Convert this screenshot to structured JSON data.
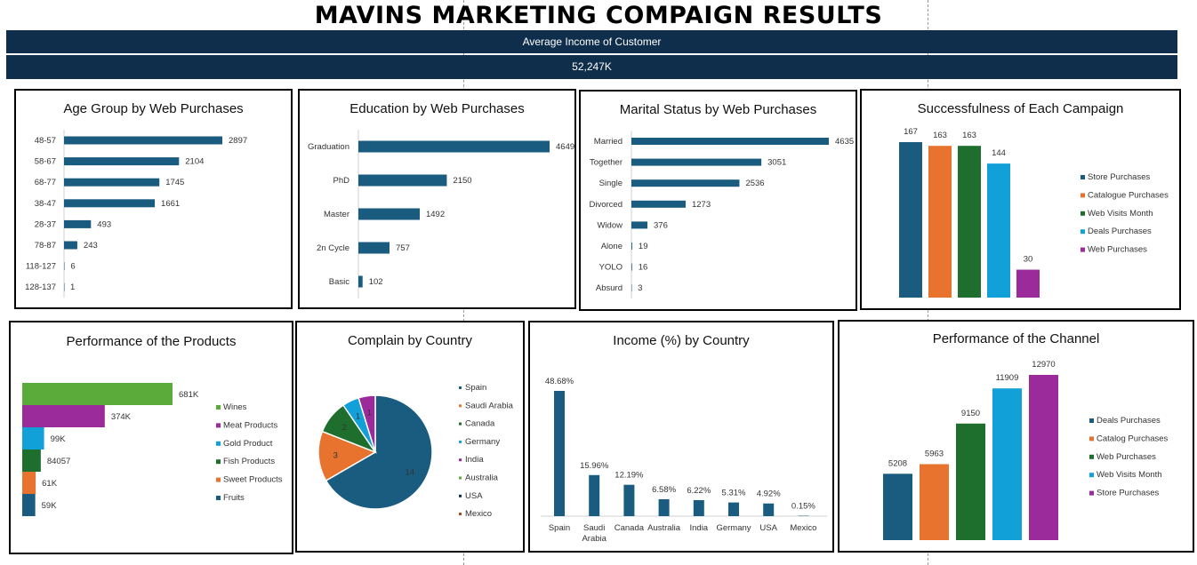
{
  "header": {
    "title": "MAVINS MARKETING COMPAIGN RESULTS",
    "band_label": "Average Income of Customer",
    "band_value": "52,247K"
  },
  "colors": {
    "navy": "#1a5b80",
    "orange": "#e8732f",
    "green": "#1e6e2d",
    "cyan": "#12a0d8",
    "purple": "#9b2a9b",
    "lime": "#5bab3a",
    "dark": "#0f2e4c"
  },
  "chart_data": [
    {
      "id": "age",
      "type": "bar",
      "orientation": "horizontal",
      "title": "Age Group by Web Purchases",
      "categories": [
        "48-57",
        "58-67",
        "68-77",
        "38-47",
        "28-37",
        "78-87",
        "118-127",
        "128-137"
      ],
      "values": [
        2897,
        2104,
        1745,
        1661,
        493,
        243,
        6,
        1
      ],
      "labels": [
        "2897",
        "2104",
        "1745",
        "1661",
        "493",
        "243",
        "6",
        "1"
      ],
      "xlim": [
        0,
        2897
      ]
    },
    {
      "id": "edu",
      "type": "bar",
      "orientation": "horizontal",
      "title": "Education by Web Purchases",
      "categories": [
        "Graduation",
        "PhD",
        "Master",
        "2n Cycle",
        "Basic"
      ],
      "values": [
        4649,
        2150,
        1492,
        757,
        102
      ],
      "labels": [
        "4649",
        "2150",
        "1492",
        "757",
        "102"
      ],
      "xlim": [
        0,
        4649
      ]
    },
    {
      "id": "marital",
      "type": "bar",
      "orientation": "horizontal",
      "title": "Marital Status by Web Purchases",
      "categories": [
        "Married",
        "Together",
        "Single",
        "Divorced",
        "Widow",
        "Alone",
        "YOLO",
        "Absurd"
      ],
      "values": [
        4635,
        3051,
        2536,
        1273,
        376,
        19,
        16,
        3
      ],
      "labels": [
        "4635",
        "3051",
        "2536",
        "1273",
        "376",
        "19",
        "16",
        "3"
      ],
      "xlim": [
        0,
        4635
      ]
    },
    {
      "id": "campaign",
      "type": "bar",
      "title": "Successfulness of Each Campaign",
      "series": [
        {
          "name": "Store Purchases",
          "value": 167,
          "label": "167",
          "color": "#1a5b80"
        },
        {
          "name": "Catalogue Purchases",
          "value": 163,
          "label": "163",
          "color": "#e8732f"
        },
        {
          "name": "Web Visits Month",
          "value": 163,
          "label": "163",
          "color": "#1e6e2d"
        },
        {
          "name": "Deals Purchases",
          "value": 144,
          "label": "144",
          "color": "#12a0d8"
        },
        {
          "name": "Web Purchases",
          "value": 30,
          "label": "30",
          "color": "#9b2a9b"
        }
      ],
      "ylim": [
        0,
        167
      ],
      "legend": "right"
    },
    {
      "id": "products",
      "type": "bar",
      "orientation": "horizontal",
      "title": "Performance of the Products",
      "series": [
        {
          "name": "Wines",
          "value": 681000,
          "label": "681K",
          "color": "#5bab3a"
        },
        {
          "name": "Meat Products",
          "value": 374000,
          "label": "374K",
          "color": "#9b2a9b"
        },
        {
          "name": "Gold Product",
          "value": 99000,
          "label": "99K",
          "color": "#12a0d8"
        },
        {
          "name": "Fish Products",
          "value": 84057,
          "label": "84057",
          "color": "#1e6e2d"
        },
        {
          "name": "Sweet Products",
          "value": 61000,
          "label": "61K",
          "color": "#e8732f"
        },
        {
          "name": "Fruits",
          "value": 59000,
          "label": "59K",
          "color": "#1a5b80"
        }
      ],
      "xlim": [
        0,
        681000
      ],
      "legend": "right"
    },
    {
      "id": "complain",
      "type": "pie",
      "title": "Complain by Country",
      "series": [
        {
          "name": "Spain",
          "value": 14,
          "color": "#1a5b80"
        },
        {
          "name": "Saudi Arabia",
          "value": 3,
          "color": "#e8732f"
        },
        {
          "name": "Canada",
          "value": 2,
          "color": "#1e6e2d"
        },
        {
          "name": "Germany",
          "value": 1,
          "color": "#12a0d8"
        },
        {
          "name": "India",
          "value": 1,
          "color": "#9b2a9b"
        },
        {
          "name": "Australia",
          "value": 0,
          "color": "#5bab3a"
        },
        {
          "name": "USA",
          "value": 0,
          "color": "#0f2e4c"
        },
        {
          "name": "Mexico",
          "value": 0,
          "color": "#a04a1a"
        }
      ],
      "legend": "right"
    },
    {
      "id": "income",
      "type": "bar",
      "title": "Income (%) by Country",
      "categories": [
        "Spain",
        "Saudi Arabia",
        "Canada",
        "Australia",
        "India",
        "Germany",
        "USA",
        "Mexico"
      ],
      "category_lines": [
        [
          "Spain"
        ],
        [
          "Saudi",
          "Arabia"
        ],
        [
          "Canada"
        ],
        [
          "Australia"
        ],
        [
          "India"
        ],
        [
          "Germany"
        ],
        [
          "USA"
        ],
        [
          "Mexico"
        ]
      ],
      "values": [
        48.68,
        15.96,
        12.19,
        6.58,
        6.22,
        5.31,
        4.92,
        0.15
      ],
      "labels": [
        "48.68%",
        "15.96%",
        "12.19%",
        "6.58%",
        "6.22%",
        "5.31%",
        "4.92%",
        "0.15%"
      ],
      "ylim": [
        0,
        48.68
      ]
    },
    {
      "id": "channel",
      "type": "bar",
      "title": "Performance of the Channel",
      "series": [
        {
          "name": "Deals Purchases",
          "value": 5208,
          "label": "5208",
          "color": "#1a5b80"
        },
        {
          "name": "Catalog Purchases",
          "value": 5963,
          "label": "5963",
          "color": "#e8732f"
        },
        {
          "name": "Web Purchases",
          "value": 9150,
          "label": "9150",
          "color": "#1e6e2d"
        },
        {
          "name": "Web Visits Month",
          "value": 11909,
          "label": "11909",
          "color": "#12a0d8"
        },
        {
          "name": "Store Purchases",
          "value": 12970,
          "label": "12970",
          "color": "#9b2a9b"
        }
      ],
      "ylim": [
        0,
        12970
      ],
      "legend": "right"
    }
  ]
}
